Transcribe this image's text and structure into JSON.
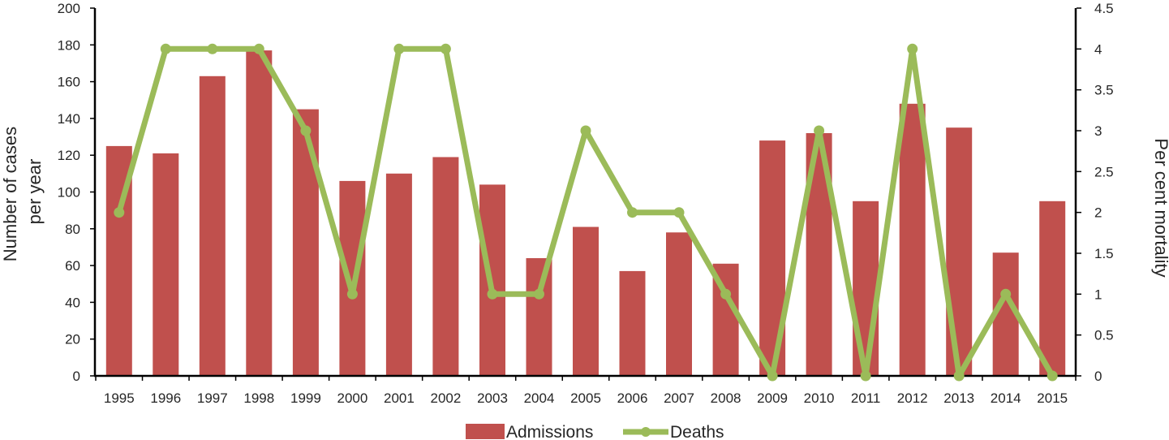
{
  "chart_data": {
    "type": "bar+line",
    "categories": [
      "1995",
      "1996",
      "1997",
      "1998",
      "1999",
      "2000",
      "2001",
      "2002",
      "2003",
      "2004",
      "2005",
      "2006",
      "2007",
      "2008",
      "2009",
      "2010",
      "2011",
      "2012",
      "2013",
      "2014",
      "2015"
    ],
    "series": [
      {
        "name": "Admissions",
        "kind": "bar",
        "axis": "left",
        "color": "#c0504d",
        "values": [
          125,
          121,
          163,
          177,
          145,
          106,
          110,
          119,
          104,
          64,
          81,
          57,
          78,
          61,
          128,
          132,
          95,
          148,
          135,
          67,
          95
        ]
      },
      {
        "name": "Deaths",
        "kind": "line",
        "axis": "right",
        "color": "#9bbb59",
        "values": [
          2,
          4,
          4,
          4,
          3,
          1,
          4,
          4,
          1,
          1,
          3,
          2,
          2,
          1,
          0,
          3,
          0,
          4,
          0,
          1,
          0
        ]
      }
    ],
    "y_left": {
      "label_line1": "Number of cases",
      "label_line2": "per year",
      "min": 0,
      "max": 200,
      "step": 20,
      "ticks": [
        "0",
        "20",
        "40",
        "60",
        "80",
        "100",
        "120",
        "140",
        "160",
        "180",
        "200"
      ]
    },
    "y_right": {
      "label": "Per cent mortality",
      "min": 0,
      "max": 4.5,
      "step": 0.5,
      "ticks": [
        "0",
        "0.5",
        "1",
        "1.5",
        "2",
        "2.5",
        "3",
        "3.5",
        "4",
        "4.5"
      ]
    },
    "legend": {
      "position": "bottom",
      "items": [
        "Admissions",
        "Deaths"
      ]
    },
    "grid": false
  }
}
